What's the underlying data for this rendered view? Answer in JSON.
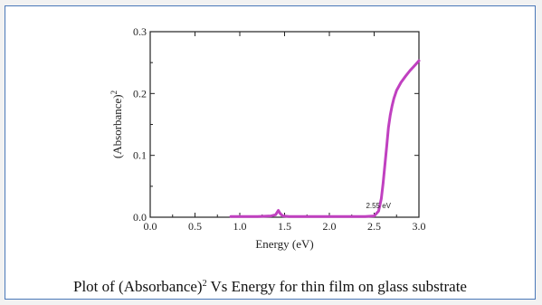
{
  "chart_data": {
    "type": "line",
    "xlabel": "Energy (eV)",
    "ylabel": "(Absorbance)",
    "ylabel_sup": "2",
    "xlim": [
      0.0,
      3.0
    ],
    "ylim": [
      0.0,
      0.3
    ],
    "xticks": [
      "0.0",
      "0.5",
      "1.0",
      "1.5",
      "2.0",
      "2.5",
      "3.0"
    ],
    "yticks": [
      "0.0",
      "0.1",
      "0.2",
      "0.3"
    ],
    "annotation": "2.55 eV",
    "annotation_x": 2.55,
    "grid": false,
    "series_color": "#c040c0",
    "series": [
      {
        "x": [
          0.9,
          1.2,
          1.35,
          1.4,
          1.43,
          1.45,
          1.48,
          1.55,
          2.0,
          2.4,
          2.5,
          2.55,
          2.58,
          2.6,
          2.62,
          2.64,
          2.66,
          2.68,
          2.7,
          2.72,
          2.75,
          2.8,
          2.85,
          2.9,
          2.95,
          3.0
        ],
        "y": [
          0.001,
          0.001,
          0.002,
          0.004,
          0.011,
          0.006,
          0.002,
          0.001,
          0.001,
          0.001,
          0.002,
          0.01,
          0.03,
          0.055,
          0.085,
          0.115,
          0.145,
          0.165,
          0.18,
          0.192,
          0.205,
          0.218,
          0.228,
          0.237,
          0.245,
          0.253
        ]
      }
    ]
  },
  "caption": {
    "prefix": "Plot of (Absorbance)",
    "sup": "2",
    "suffix": " Vs Energy for thin film on glass substrate"
  }
}
